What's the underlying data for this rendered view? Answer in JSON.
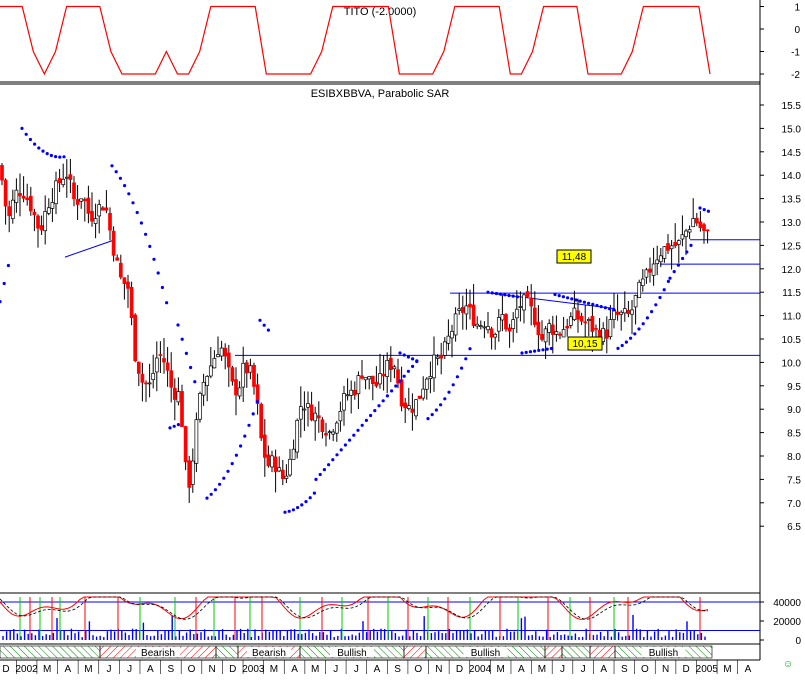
{
  "panels": {
    "tito": {
      "title": "TITO (-2.0000)",
      "y_ticks": [
        "1",
        "0",
        "-1",
        "-2"
      ]
    },
    "main": {
      "title": "ESIBXBBVA, Parabolic SAR",
      "y_ticks": [
        "15.5",
        "15.0",
        "14.5",
        "14.0",
        "13.5",
        "13.0",
        "12.5",
        "12.0",
        "11.5",
        "11.0",
        "10.5",
        "10.0",
        "9.5",
        "9.0",
        "8.5",
        "8.0",
        "7.5",
        "7.0",
        "6.5"
      ],
      "annotations": [
        "11,48",
        "10,15"
      ]
    },
    "volume": {
      "y_ticks": [
        "40000",
        "20000",
        "0"
      ]
    },
    "x_axis": {
      "labels": [
        "D",
        "2002",
        "M",
        "A",
        "M",
        "J",
        "J",
        "A",
        "S",
        "O",
        "N",
        "D",
        "2003",
        "M",
        "A",
        "M",
        "J",
        "J",
        "A",
        "S",
        "O",
        "N",
        "D",
        "2004",
        "M",
        "A",
        "M",
        "J",
        "J",
        "A",
        "S",
        "O",
        "N",
        "D",
        "2005",
        "M",
        "A"
      ]
    },
    "phases": [
      "Bearish",
      "Bearish",
      "Bullish",
      "Bullish",
      "Bullish"
    ]
  },
  "colors": {
    "up": "#ffffff",
    "down": "#ff0000",
    "sar": "#0000ff",
    "line_blue": "#0000ff",
    "tito": "#ff0000",
    "bull_marker": "#00cc00",
    "bear_marker": "#ff0000",
    "highlight_box": "#ffff00"
  },
  "chart_data": [
    {
      "type": "line",
      "title": "TITO (-2.0000)",
      "series": [
        {
          "values": [
            1,
            1,
            1,
            -1,
            -2,
            -1,
            1,
            1,
            1,
            1,
            -1,
            -2,
            -2,
            -2,
            -2,
            -1,
            -2,
            -2,
            -1,
            1,
            1,
            1,
            1,
            1,
            -2,
            -2,
            -2,
            -2,
            -2,
            -1,
            1,
            1,
            1,
            1,
            1,
            1,
            -2,
            -2,
            -2,
            -2,
            -1,
            1,
            1,
            1,
            1,
            1,
            -2,
            -2,
            -1,
            1,
            1,
            1,
            1,
            -2,
            -2,
            -2,
            -2,
            -1,
            1,
            1,
            1,
            1,
            1,
            1,
            -2
          ]
        }
      ],
      "ylim": [
        -2.2,
        1.5
      ]
    },
    {
      "type": "bar",
      "title": "ESIBXBBVA, Parabolic SAR",
      "subtype": "candlestick",
      "period": "weekly, Dec 2001 - Feb 2005",
      "close_path": [
        [
          0,
          14.2
        ],
        [
          8,
          13.0
        ],
        [
          15,
          13.6
        ],
        [
          22,
          13.7
        ],
        [
          30,
          13.4
        ],
        [
          40,
          12.8
        ],
        [
          48,
          13.4
        ],
        [
          58,
          13.8
        ],
        [
          66,
          14.1
        ],
        [
          75,
          13.4
        ],
        [
          82,
          13.6
        ],
        [
          90,
          13.1
        ],
        [
          98,
          13.3
        ],
        [
          105,
          13.4
        ],
        [
          112,
          12.6
        ],
        [
          120,
          11.8
        ],
        [
          128,
          11.6
        ],
        [
          135,
          10.2
        ],
        [
          142,
          9.6
        ],
        [
          150,
          9.5
        ],
        [
          158,
          10.2
        ],
        [
          165,
          10.0
        ],
        [
          172,
          9.4
        ],
        [
          180,
          9.3
        ],
        [
          186,
          7.6
        ],
        [
          190,
          7.4
        ],
        [
          196,
          8.6
        ],
        [
          202,
          9.5
        ],
        [
          208,
          9.8
        ],
        [
          214,
          10.1
        ],
        [
          220,
          10.4
        ],
        [
          226,
          10.0
        ],
        [
          232,
          9.5
        ],
        [
          238,
          9.4
        ],
        [
          244,
          9.9
        ],
        [
          250,
          9.8
        ],
        [
          256,
          9.3
        ],
        [
          262,
          8.2
        ],
        [
          268,
          7.8
        ],
        [
          274,
          7.9
        ],
        [
          280,
          7.6
        ],
        [
          284,
          7.5
        ],
        [
          290,
          7.9
        ],
        [
          296,
          8.6
        ],
        [
          302,
          9.2
        ],
        [
          308,
          9.0
        ],
        [
          314,
          8.9
        ],
        [
          322,
          8.7
        ],
        [
          330,
          8.5
        ],
        [
          338,
          8.9
        ],
        [
          346,
          9.3
        ],
        [
          354,
          9.4
        ],
        [
          362,
          9.8
        ],
        [
          370,
          9.6
        ],
        [
          378,
          9.5
        ],
        [
          386,
          9.9
        ],
        [
          394,
          10.0
        ],
        [
          402,
          9.2
        ],
        [
          410,
          9.0
        ],
        [
          418,
          9.2
        ],
        [
          426,
          9.7
        ],
        [
          434,
          10.0
        ],
        [
          442,
          10.1
        ],
        [
          450,
          10.6
        ],
        [
          458,
          11.0
        ],
        [
          466,
          11.2
        ],
        [
          472,
          11.0
        ],
        [
          478,
          10.8
        ],
        [
          486,
          10.9
        ],
        [
          494,
          10.6
        ],
        [
          502,
          11.0
        ],
        [
          510,
          10.6
        ],
        [
          518,
          11.2
        ],
        [
          526,
          11.3
        ],
        [
          534,
          11.0
        ],
        [
          542,
          10.5
        ],
        [
          550,
          10.8
        ],
        [
          558,
          10.6
        ],
        [
          566,
          10.8
        ],
        [
          574,
          11.0
        ],
        [
          582,
          10.9
        ],
        [
          590,
          10.8
        ],
        [
          598,
          10.6
        ],
        [
          606,
          10.6
        ],
        [
          614,
          11.0
        ],
        [
          622,
          11.0
        ],
        [
          630,
          11.0
        ],
        [
          638,
          11.5
        ],
        [
          646,
          11.8
        ],
        [
          654,
          12.2
        ],
        [
          662,
          12.4
        ],
        [
          670,
          12.5
        ],
        [
          678,
          12.5
        ],
        [
          686,
          12.8
        ],
        [
          694,
          13.1
        ],
        [
          700,
          12.9
        ],
        [
          706,
          12.7
        ]
      ],
      "support_resistance": [
        11.48,
        10.15
      ],
      "ylim": [
        6.4,
        15.7
      ]
    },
    {
      "type": "bar",
      "title": "",
      "subtype": "volume",
      "ylim": [
        0,
        46000
      ]
    }
  ]
}
